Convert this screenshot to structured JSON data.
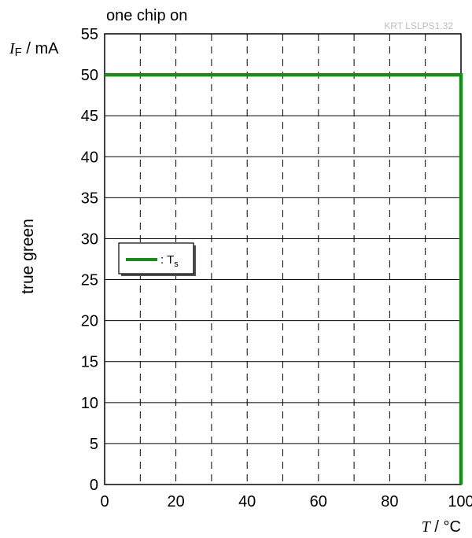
{
  "chart_data": {
    "type": "line",
    "title": "one chip on",
    "source_code": "KRT LSLPS1.32",
    "side_label": "true green",
    "ylabel": {
      "symbol": "I",
      "subscript": "F",
      "unit": " / mA"
    },
    "xlabel": {
      "symbol": "T",
      "unit": " / °C"
    },
    "xlim": [
      0,
      100
    ],
    "ylim": [
      0,
      55
    ],
    "x_ticks": [
      "0",
      "20",
      "40",
      "60",
      "80",
      "100"
    ],
    "y_ticks": [
      "0",
      "5",
      "10",
      "15",
      "20",
      "25",
      "30",
      "35",
      "40",
      "45",
      "50",
      "55"
    ],
    "grid": {
      "vertical": "dashed every 10",
      "horizontal": "solid every 5"
    },
    "legend_position": "left-middle",
    "series": [
      {
        "name": "Ts",
        "label_prefix": ": T",
        "label_sub": "s",
        "color": "#1a8a1a",
        "x": [
          0,
          100,
          100
        ],
        "y": [
          50,
          50,
          0
        ]
      }
    ]
  }
}
